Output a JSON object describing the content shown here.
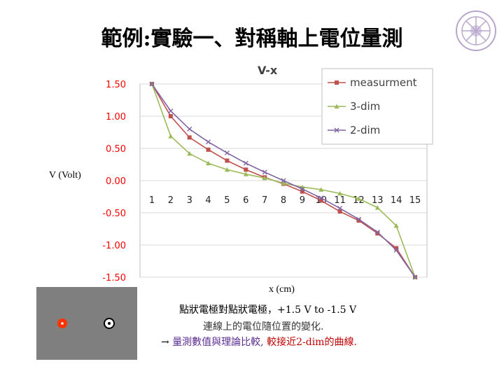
{
  "slide": {
    "title": "範例:實驗一、對稱軸上電位量測",
    "ylabel": "V (Volt)",
    "xlabel": "x (cm)",
    "note_line1": "點狀電極對點狀電極，+1.5 V to -1.5 V",
    "note_line2": "連線上的電位隨位置的變化.",
    "note_line3_arrow": "→",
    "note_line3_a": "量測數值與理論比較,",
    "note_line3_b": "較接近2-dim的曲線.",
    "colors": {
      "measurment": "#c0504d",
      "three_dim": "#9bbb59",
      "two_dim": "#8064a2",
      "axis_text": "#ff0000"
    }
  },
  "chart_data": {
    "type": "line",
    "title": "V-x",
    "x": [
      1,
      2,
      3,
      4,
      5,
      6,
      7,
      8,
      9,
      10,
      11,
      12,
      13,
      14,
      15
    ],
    "x_tick_labels": [
      "1",
      "2",
      "3",
      "4",
      "5",
      "6",
      "7",
      "8",
      "9",
      "10",
      "11",
      "12",
      "13",
      "14",
      "15"
    ],
    "y_tick_labels": [
      "1.50",
      "1.00",
      "0.50",
      "0.00",
      "-0.50",
      "-1.00",
      "-1.50"
    ],
    "ylim": [
      -1.5,
      1.5
    ],
    "grid": true,
    "legend_position": "top-right",
    "series": [
      {
        "name": "measurment",
        "values": [
          1.5,
          1.0,
          0.67,
          0.48,
          0.31,
          0.17,
          0.05,
          -0.05,
          -0.17,
          -0.31,
          -0.48,
          -0.62,
          -0.82,
          -1.05,
          -1.5
        ]
      },
      {
        "name": "3-dim",
        "values": [
          1.5,
          0.69,
          0.42,
          0.27,
          0.17,
          0.1,
          0.04,
          -0.04,
          -0.1,
          -0.14,
          -0.2,
          -0.28,
          -0.42,
          -0.7,
          -1.5
        ]
      },
      {
        "name": "2-dim",
        "values": [
          1.5,
          1.08,
          0.8,
          0.6,
          0.43,
          0.27,
          0.13,
          0.0,
          -0.13,
          -0.27,
          -0.43,
          -0.6,
          -0.8,
          -1.08,
          -1.5
        ]
      }
    ]
  }
}
